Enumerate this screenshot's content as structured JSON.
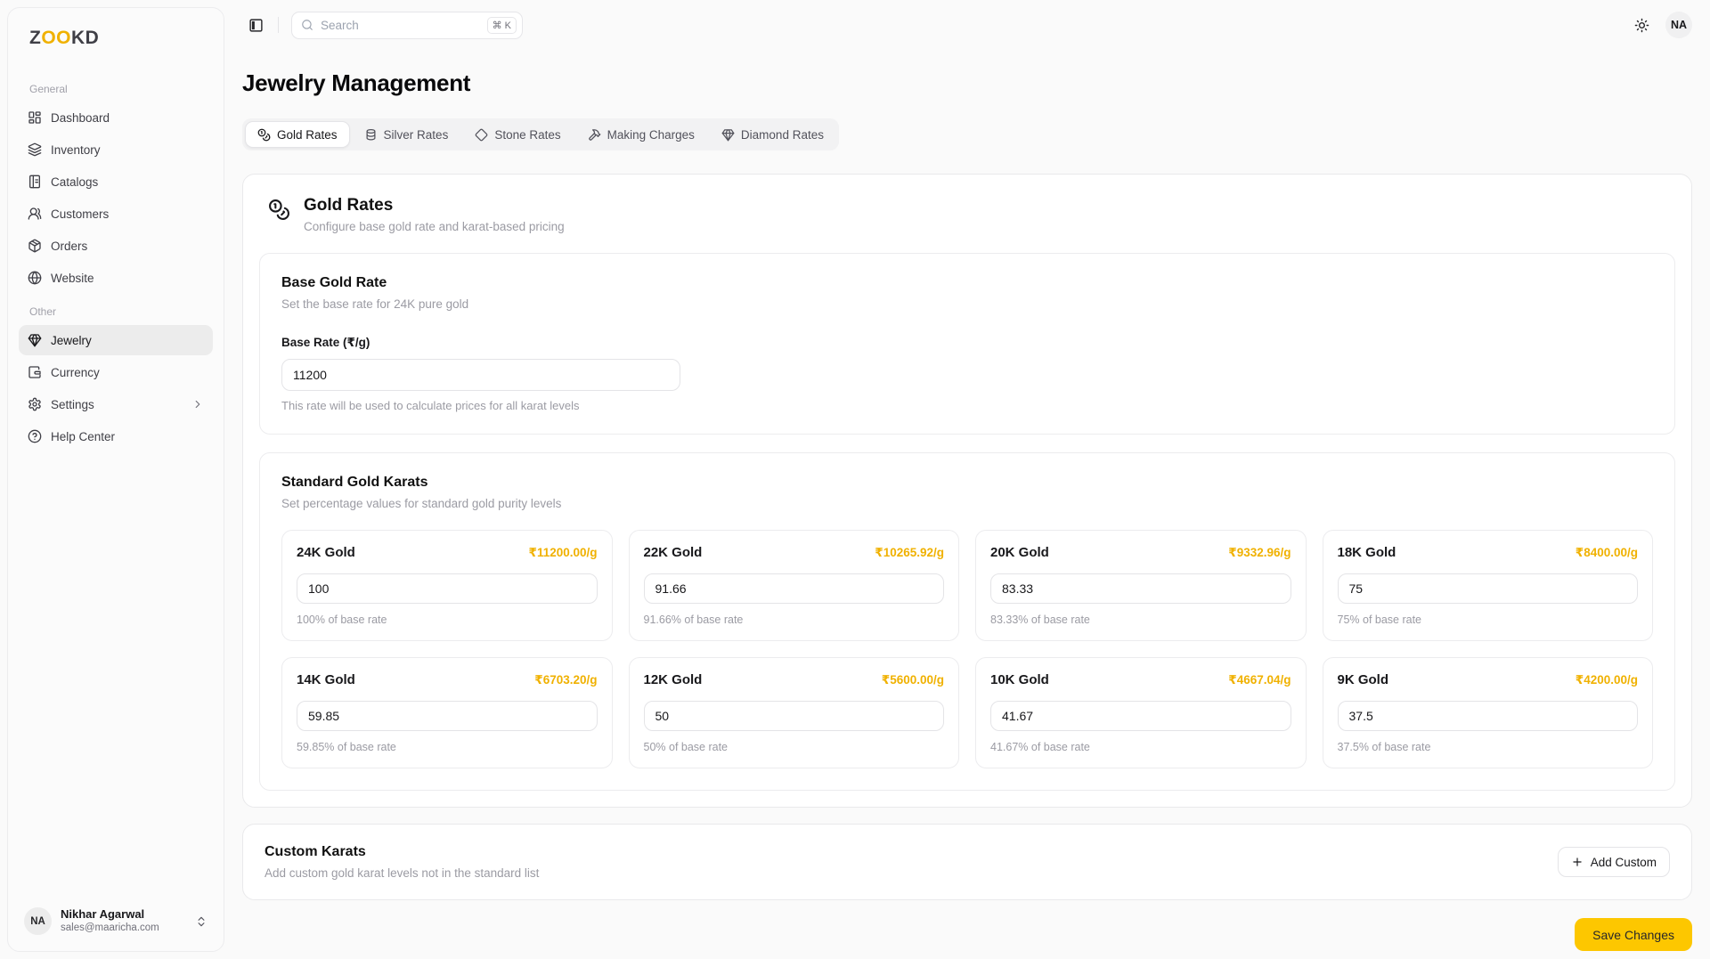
{
  "brand": {
    "prefix": "Z",
    "highlight": "OO",
    "suffix": "KD"
  },
  "colors": {
    "accent_yellow": "#fdc700",
    "price_gold": "#f0b100"
  },
  "sidebar": {
    "sections": [
      {
        "label": "General",
        "items": [
          {
            "id": "dashboard",
            "label": "Dashboard",
            "icon": "dashboard-icon"
          },
          {
            "id": "inventory",
            "label": "Inventory",
            "icon": "layers-icon"
          },
          {
            "id": "catalogs",
            "label": "Catalogs",
            "icon": "book-icon"
          },
          {
            "id": "customers",
            "label": "Customers",
            "icon": "users-icon"
          },
          {
            "id": "orders",
            "label": "Orders",
            "icon": "package-icon"
          },
          {
            "id": "website",
            "label": "Website",
            "icon": "globe-icon"
          }
        ]
      },
      {
        "label": "Other",
        "items": [
          {
            "id": "jewelry",
            "label": "Jewelry",
            "icon": "gem-icon",
            "active": true
          },
          {
            "id": "currency",
            "label": "Currency",
            "icon": "wallet-icon"
          },
          {
            "id": "settings",
            "label": "Settings",
            "icon": "gear-icon",
            "chevron": true
          },
          {
            "id": "help-center",
            "label": "Help Center",
            "icon": "help-icon"
          }
        ]
      }
    ],
    "user": {
      "initials": "NA",
      "name": "Nikhar Agarwal",
      "email": "sales@maaricha.com"
    }
  },
  "topbar": {
    "search_placeholder": "Search",
    "shortcut": "⌘ K",
    "avatar_initials": "NA"
  },
  "page_title": "Jewelry Management",
  "tabs": [
    {
      "id": "gold-rates",
      "label": "Gold Rates",
      "icon": "coins-icon",
      "active": true
    },
    {
      "id": "silver-rates",
      "label": "Silver Rates",
      "icon": "coins-stack-icon"
    },
    {
      "id": "stone-rates",
      "label": "Stone Rates",
      "icon": "diamond-outline-icon"
    },
    {
      "id": "making-charges",
      "label": "Making Charges",
      "icon": "hammer-icon"
    },
    {
      "id": "diamond-rates",
      "label": "Diamond Rates",
      "icon": "gem-icon"
    }
  ],
  "gold_rates": {
    "title": "Gold Rates",
    "subtitle": "Configure base gold rate and karat-based pricing",
    "icon": "coins-icon",
    "base": {
      "title": "Base Gold Rate",
      "subtitle": "Set the base rate for 24K pure gold",
      "label": "Base Rate (₹/g)",
      "value": "11200",
      "helper": "This rate will be used to calculate prices for all karat levels"
    },
    "standard": {
      "title": "Standard Gold Karats",
      "subtitle": "Set percentage values for standard gold purity levels",
      "karats": [
        {
          "name": "24K Gold",
          "price": "₹11200.00/g",
          "value": "100",
          "helper": "100% of base rate"
        },
        {
          "name": "22K Gold",
          "price": "₹10265.92/g",
          "value": "91.66",
          "helper": "91.66% of base rate"
        },
        {
          "name": "20K Gold",
          "price": "₹9332.96/g",
          "value": "83.33",
          "helper": "83.33% of base rate"
        },
        {
          "name": "18K Gold",
          "price": "₹8400.00/g",
          "value": "75",
          "helper": "75% of base rate"
        },
        {
          "name": "14K Gold",
          "price": "₹6703.20/g",
          "value": "59.85",
          "helper": "59.85% of base rate"
        },
        {
          "name": "12K Gold",
          "price": "₹5600.00/g",
          "value": "50",
          "helper": "50% of base rate"
        },
        {
          "name": "10K Gold",
          "price": "₹4667.04/g",
          "value": "41.67",
          "helper": "41.67% of base rate"
        },
        {
          "name": "9K Gold",
          "price": "₹4200.00/g",
          "value": "37.5",
          "helper": "37.5% of base rate"
        }
      ]
    },
    "custom": {
      "title": "Custom Karats",
      "subtitle": "Add custom gold karat levels not in the standard list",
      "add_button_label": "Add Custom"
    },
    "save_button_label": "Save Changes"
  }
}
